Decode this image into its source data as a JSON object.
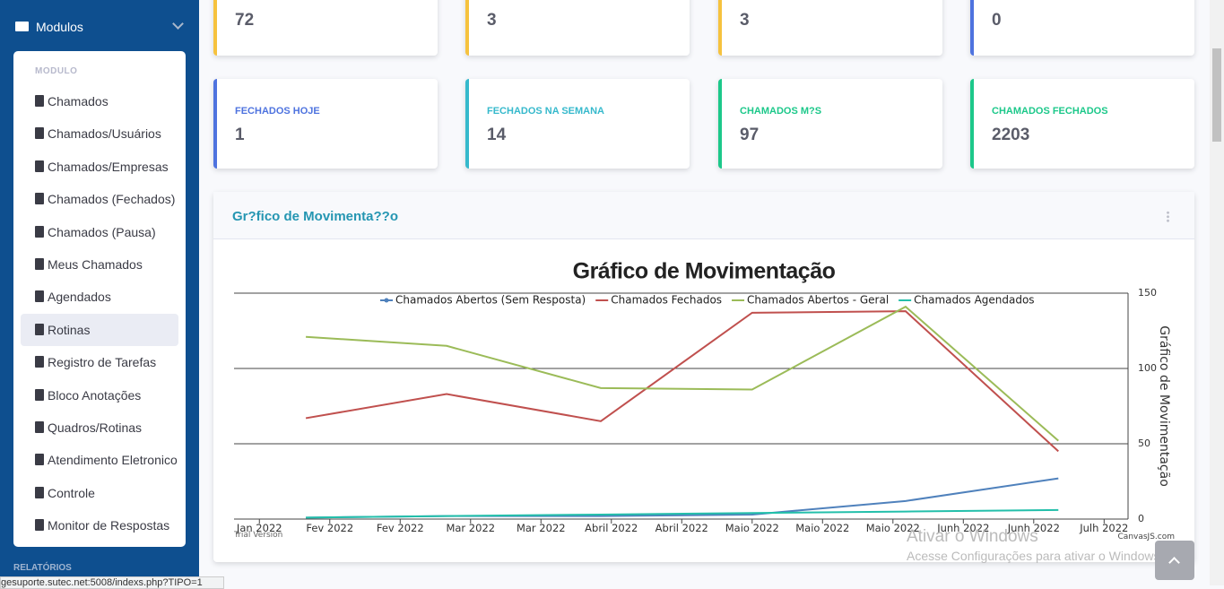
{
  "sidebar": {
    "section": "Modulos",
    "panel_heading": "MODULO",
    "items": [
      "Chamados",
      "Chamados/Usuários",
      "Chamados/Empresas",
      "Chamados (Fechados)",
      "Chamados (Pausa)",
      "Meus Chamados",
      "Agendados",
      "Rotinas",
      "Registro de Tarefas",
      "Bloco Anotações",
      "Quadros/Rotinas",
      "Atendimento Eletronico",
      "Controle",
      "Monitor de Respostas"
    ],
    "active": "Rotinas",
    "footer_heading": "RELATÓRIOS"
  },
  "status_url": "gesuporte.sutec.net:5008/indexs.php?TIPO=1",
  "cards_top": [
    {
      "value": "72",
      "color": "#f6c23e"
    },
    {
      "value": "3",
      "color": "#f6c23e"
    },
    {
      "value": "3",
      "color": "#f6c23e"
    },
    {
      "value": "0",
      "color": "#4e73df"
    }
  ],
  "cards": [
    {
      "label": "FECHADOS HOJE",
      "value": "1",
      "color": "#4e73df",
      "label_color": "#4e73df"
    },
    {
      "label": "FECHADOS NA SEMANA",
      "value": "14",
      "color": "#36b9cc",
      "label_color": "#36b9cc"
    },
    {
      "label": "CHAMADOS M?S",
      "value": "97",
      "color": "#1cc88a",
      "label_color": "#1cc88a"
    },
    {
      "label": "CHAMADOS FECHADOS",
      "value": "2203",
      "color": "#1cc88a",
      "label_color": "#1cc88a"
    }
  ],
  "panel_title": "Gr?fico de Movimenta??o",
  "chart_data": {
    "type": "line",
    "title": "Gráfico de Movimentação",
    "y_axis_label": "Gráfico de Movimentação",
    "x": [
      0.66,
      2.66,
      4.85,
      7.0,
      9.18,
      11.35
    ],
    "xlim": [
      -0.36,
      12.34
    ],
    "xticks": [
      {
        "value": 0,
        "label": "Jan 2022"
      },
      {
        "value": 1,
        "label": "Fev 2022"
      },
      {
        "value": 2,
        "label": "Fev 2022"
      },
      {
        "value": 3,
        "label": "Mar 2022"
      },
      {
        "value": 4,
        "label": "Mar 2022"
      },
      {
        "value": 5,
        "label": "Abril 2022"
      },
      {
        "value": 6,
        "label": "Abril 2022"
      },
      {
        "value": 7,
        "label": "Maio 2022"
      },
      {
        "value": 8,
        "label": "Maio 2022"
      },
      {
        "value": 9,
        "label": "Maio 2022"
      },
      {
        "value": 10,
        "label": "Junh 2022"
      },
      {
        "value": 11,
        "label": "Junh 2022"
      },
      {
        "value": 12,
        "label": "Julh 2022"
      }
    ],
    "ylim": [
      0,
      150
    ],
    "yticks": [
      0,
      50,
      100,
      150
    ],
    "grid": true,
    "series": [
      {
        "name": "Chamados Abertos (Sem Resposta)",
        "color": "#4f81bc",
        "values": [
          1,
          2,
          2,
          3,
          12,
          27
        ]
      },
      {
        "name": "Chamados Fechados",
        "color": "#c0504e",
        "values": [
          67,
          83,
          65,
          137,
          138,
          45
        ]
      },
      {
        "name": "Chamados Abertos - Geral",
        "color": "#9bbb58",
        "values": [
          121,
          115,
          87,
          86,
          141,
          52
        ]
      },
      {
        "name": "Chamados Agendados",
        "color": "#23bfaa",
        "values": [
          1,
          2,
          3,
          4,
          5,
          6
        ]
      }
    ],
    "trial": "Trial Version",
    "credit": "CanvasJS.com"
  },
  "watermark": {
    "title": "Ativar o Windows",
    "text": "Acesse Configurações para ativar o Windows"
  }
}
